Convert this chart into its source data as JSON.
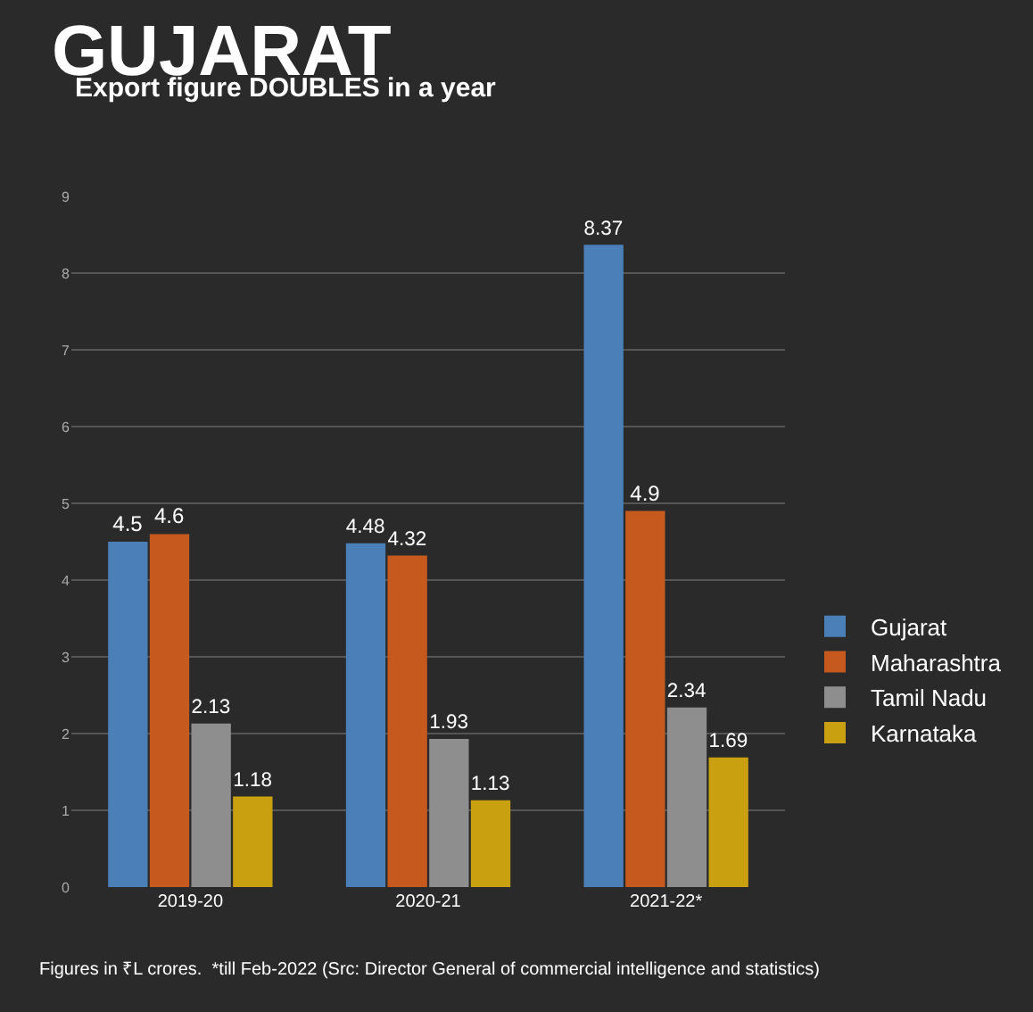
{
  "chart_data": {
    "type": "bar",
    "title": "GUJARAT",
    "subtitle": "Export figure DOUBLES in a year",
    "categories": [
      "2019-20",
      "2020-21",
      "2021-22*"
    ],
    "series": [
      {
        "name": "Gujarat",
        "color": "#4a7fb8",
        "values": [
          4.5,
          4.48,
          8.37
        ]
      },
      {
        "name": "Maharashtra",
        "color": "#c65a1e",
        "values": [
          4.6,
          4.32,
          4.9
        ]
      },
      {
        "name": "Tamil Nadu",
        "color": "#8e8e8e",
        "values": [
          2.13,
          1.93,
          2.34
        ]
      },
      {
        "name": "Karnataka",
        "color": "#c9a010",
        "values": [
          1.18,
          1.13,
          1.69
        ]
      }
    ],
    "ylim": [
      0,
      9
    ],
    "yticks": [
      0,
      1,
      2,
      3,
      4,
      5,
      6,
      7,
      8,
      9
    ],
    "grid": "y",
    "legend": "right",
    "data_labels": true,
    "annotations": [
      "Figures in ₹L crores.  *till Feb-2022 (Src: Director General of commercial intelligence and statistics)"
    ]
  }
}
